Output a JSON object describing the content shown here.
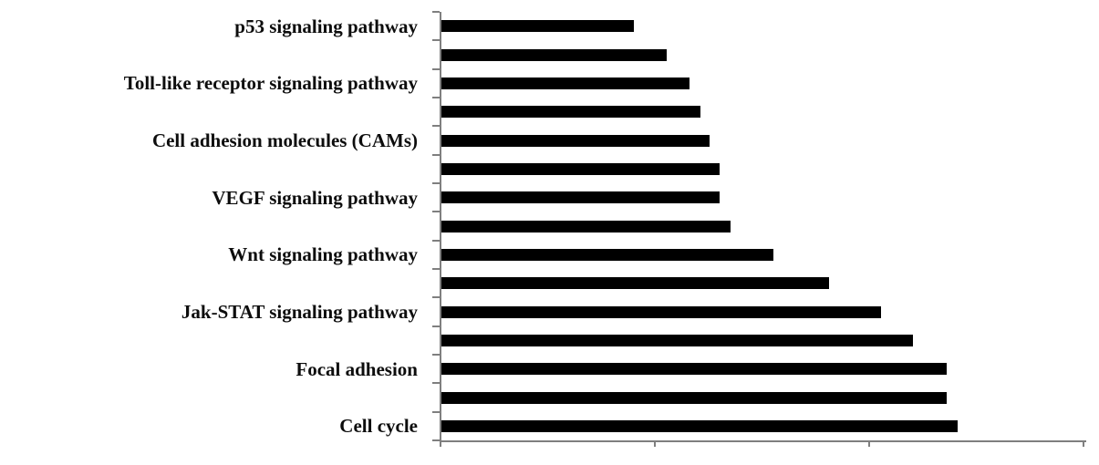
{
  "chart_data": {
    "type": "bar",
    "orientation": "horizontal",
    "title": "",
    "xlabel": "",
    "ylabel": "",
    "categories": [
      "p53 signaling pathway",
      "",
      "Toll-like receptor signaling pathway",
      "",
      "Cell adhesion molecules (CAMs)",
      "",
      "VEGF signaling pathway",
      "",
      "Wnt signaling pathway",
      "",
      "Jak-STAT signaling pathway",
      "",
      "Focal adhesion",
      "",
      "Cell cycle"
    ],
    "values": [
      0.9,
      1.05,
      1.16,
      1.21,
      1.25,
      1.3,
      1.3,
      1.35,
      1.55,
      1.81,
      2.05,
      2.2,
      2.36,
      2.36,
      2.41
    ],
    "xlim": [
      0,
      3.01
    ],
    "x_ticks": [
      0,
      1,
      2,
      3
    ],
    "x_tick_labels_shown": false,
    "y_tick_count": 16,
    "grid": false,
    "legend": false,
    "bar_color": "#000000",
    "axis_color": "#7f7f7f",
    "label_color": "#0d0d0d"
  }
}
